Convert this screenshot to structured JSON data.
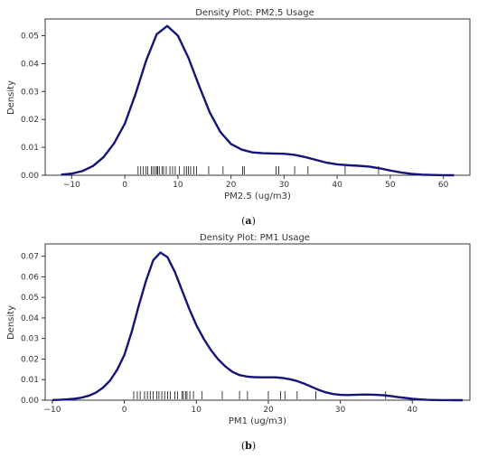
{
  "chart_data": [
    {
      "type": "line",
      "title": "Density Plot: PM2.5 Usage",
      "xlabel": "PM2.5 (ug/m3)",
      "ylabel": "Density",
      "xlim": [
        -15,
        65
      ],
      "ylim": [
        0,
        0.056
      ],
      "xticks": [
        -10,
        0,
        10,
        20,
        30,
        40,
        50,
        60
      ],
      "xtick_labels": [
        "−10",
        "0",
        "10",
        "20",
        "30",
        "40",
        "50",
        "60"
      ],
      "yticks": [
        0.0,
        0.01,
        0.02,
        0.03,
        0.04,
        0.05
      ],
      "ytick_labels": [
        "0.00",
        "0.01",
        "0.02",
        "0.03",
        "0.04",
        "0.05"
      ],
      "grid": false,
      "caption": "(a)",
      "series": [
        {
          "color": "#14147a",
          "x": [
            -12,
            -10,
            -8,
            -6,
            -4,
            -2,
            0,
            2,
            4,
            6,
            8,
            10,
            12,
            14,
            16,
            18,
            20,
            22,
            24,
            26,
            28,
            30,
            32,
            34,
            36,
            38,
            40,
            42,
            44,
            46,
            48,
            50,
            52,
            54,
            56,
            58,
            60,
            62
          ],
          "y": [
            0.0002,
            0.0006,
            0.0015,
            0.0033,
            0.0065,
            0.0115,
            0.0185,
            0.029,
            0.041,
            0.0505,
            0.0535,
            0.05,
            0.042,
            0.032,
            0.0225,
            0.0155,
            0.0112,
            0.0092,
            0.0082,
            0.0079,
            0.0078,
            0.0077,
            0.0073,
            0.0065,
            0.0055,
            0.0045,
            0.0039,
            0.0036,
            0.0034,
            0.0031,
            0.0025,
            0.0017,
            0.001,
            0.0005,
            0.0002,
            0.0001,
            3e-05,
            0.0
          ]
        }
      ],
      "rug": [
        2.5,
        3.0,
        3.5,
        4.0,
        4.3,
        5.0,
        5.3,
        5.7,
        6.0,
        6.2,
        6.5,
        7.0,
        7.3,
        7.8,
        8.5,
        9.0,
        9.5,
        10.3,
        11.2,
        11.6,
        12.0,
        12.4,
        13.0,
        13.5,
        15.8,
        18.5,
        22.2,
        22.5,
        28.5,
        29.0,
        32.0,
        34.5,
        41.5,
        47.8
      ]
    },
    {
      "type": "line",
      "title": "Density Plot: PM1 Usage",
      "xlabel": "PM1 (ug/m3)",
      "ylabel": "Density",
      "xlim": [
        -11,
        48
      ],
      "ylim": [
        0,
        0.076
      ],
      "xticks": [
        -10,
        0,
        10,
        20,
        30,
        40
      ],
      "xtick_labels": [
        "−10",
        "0",
        "10",
        "20",
        "30",
        "40"
      ],
      "yticks": [
        0.0,
        0.01,
        0.02,
        0.03,
        0.04,
        0.05,
        0.06,
        0.07
      ],
      "ytick_labels": [
        "0.00",
        "0.01",
        "0.02",
        "0.03",
        "0.04",
        "0.05",
        "0.06",
        "0.07"
      ],
      "grid": false,
      "caption": "(b)",
      "series": [
        {
          "color": "#14147a",
          "x": [
            -10,
            -9,
            -8,
            -7,
            -6,
            -5,
            -4,
            -3,
            -2,
            -1,
            0,
            1,
            2,
            3,
            4,
            5,
            6,
            7,
            8,
            9,
            10,
            11,
            12,
            13,
            14,
            15,
            16,
            17,
            18,
            19,
            20,
            21,
            22,
            23,
            24,
            25,
            26,
            27,
            28,
            29,
            30,
            31,
            32,
            33,
            34,
            35,
            36,
            37,
            38,
            39,
            40,
            41,
            42,
            43,
            44,
            45,
            46,
            47
          ],
          "y": [
            0.0001,
            0.0002,
            0.0004,
            0.0007,
            0.0012,
            0.0021,
            0.0036,
            0.006,
            0.0095,
            0.0148,
            0.022,
            0.033,
            0.046,
            0.058,
            0.068,
            0.0718,
            0.0695,
            0.0625,
            0.0535,
            0.0445,
            0.0365,
            0.03,
            0.0245,
            0.02,
            0.0165,
            0.0138,
            0.0122,
            0.0115,
            0.0112,
            0.0111,
            0.0111,
            0.0111,
            0.0108,
            0.0102,
            0.0093,
            0.008,
            0.0065,
            0.005,
            0.0038,
            0.003,
            0.0026,
            0.0025,
            0.0026,
            0.0027,
            0.0027,
            0.0026,
            0.0024,
            0.002,
            0.0015,
            0.0011,
            0.0007,
            0.0004,
            0.0002,
            0.0001,
            5e-05,
            2e-05,
            0.0,
            0.0
          ]
        }
      ],
      "rug": [
        1.3,
        1.8,
        2.2,
        2.8,
        3.2,
        3.6,
        4.0,
        4.5,
        4.8,
        5.2,
        5.6,
        6.0,
        6.4,
        7.0,
        7.4,
        8.0,
        8.2,
        8.5,
        8.7,
        9.1,
        9.6,
        10.8,
        13.6,
        16.0,
        17.1,
        20.0,
        21.7,
        22.3,
        24.0,
        26.6,
        36.3
      ]
    }
  ]
}
